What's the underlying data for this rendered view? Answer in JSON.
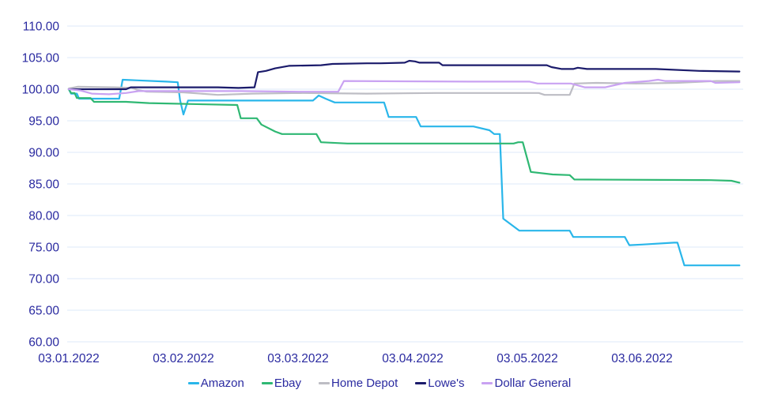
{
  "chart_data": {
    "type": "line",
    "title": "",
    "xlabel": "",
    "ylabel": "",
    "grid": "horizontal",
    "legend_position": "bottom",
    "background": "#ffffff",
    "axis_text_color": "#2a2aa0",
    "gridline_color": "#e3edf9",
    "y_axis": {
      "min": 60,
      "max": 110,
      "step": 5,
      "tick_labels": [
        "110.00",
        "105.00",
        "100.00",
        "95.00",
        "90.00",
        "85.00",
        "80.00",
        "75.00",
        "70.00",
        "65.00",
        "60.00"
      ]
    },
    "x_axis": {
      "tick_labels": [
        "03.01.2022",
        "03.02.2022",
        "03.03.2022",
        "03.04.2022",
        "03.05.2022",
        "03.06.2022"
      ],
      "tick_values": [
        0,
        1,
        2,
        3,
        4,
        5
      ],
      "data_min": 0,
      "data_max": 5.85
    },
    "series": [
      {
        "name": "Amazon",
        "color": "#29b6ea",
        "points": [
          [
            0.0,
            100.0
          ],
          [
            0.02,
            99.3
          ],
          [
            0.07,
            99.3
          ],
          [
            0.09,
            98.5
          ],
          [
            0.44,
            98.5
          ],
          [
            0.47,
            101.5
          ],
          [
            0.6,
            101.4
          ],
          [
            0.85,
            101.2
          ],
          [
            0.95,
            101.1
          ],
          [
            0.97,
            98.3
          ],
          [
            1.0,
            96.0
          ],
          [
            1.04,
            98.2
          ],
          [
            2.13,
            98.2
          ],
          [
            2.18,
            99.0
          ],
          [
            2.24,
            98.5
          ],
          [
            2.32,
            97.9
          ],
          [
            2.75,
            97.9
          ],
          [
            2.79,
            95.6
          ],
          [
            3.03,
            95.6
          ],
          [
            3.07,
            94.1
          ],
          [
            3.53,
            94.1
          ],
          [
            3.67,
            93.5
          ],
          [
            3.71,
            92.9
          ],
          [
            3.76,
            92.9
          ],
          [
            3.79,
            79.5
          ],
          [
            3.93,
            77.6
          ],
          [
            4.37,
            77.6
          ],
          [
            4.4,
            76.6
          ],
          [
            4.85,
            76.6
          ],
          [
            4.89,
            75.3
          ],
          [
            5.0,
            75.4
          ],
          [
            5.28,
            75.7
          ],
          [
            5.31,
            75.7
          ],
          [
            5.37,
            72.1
          ],
          [
            5.85,
            72.1
          ]
        ]
      },
      {
        "name": "Ebay",
        "color": "#2fb873",
        "points": [
          [
            0.0,
            100.0
          ],
          [
            0.02,
            99.4
          ],
          [
            0.05,
            99.4
          ],
          [
            0.07,
            98.6
          ],
          [
            0.19,
            98.6
          ],
          [
            0.22,
            98.0
          ],
          [
            0.5,
            98.0
          ],
          [
            0.7,
            97.8
          ],
          [
            1.2,
            97.6
          ],
          [
            1.47,
            97.5
          ],
          [
            1.5,
            95.4
          ],
          [
            1.64,
            95.4
          ],
          [
            1.68,
            94.4
          ],
          [
            1.8,
            93.3
          ],
          [
            1.86,
            92.9
          ],
          [
            2.16,
            92.9
          ],
          [
            2.2,
            91.6
          ],
          [
            2.43,
            91.4
          ],
          [
            3.88,
            91.4
          ],
          [
            3.92,
            91.6
          ],
          [
            3.96,
            91.6
          ],
          [
            4.03,
            86.9
          ],
          [
            4.22,
            86.5
          ],
          [
            4.37,
            86.4
          ],
          [
            4.41,
            85.7
          ],
          [
            5.6,
            85.6
          ],
          [
            5.78,
            85.5
          ],
          [
            5.85,
            85.2
          ]
        ]
      },
      {
        "name": "Home Depot",
        "color": "#bdbdc4",
        "points": [
          [
            0.0,
            100.1
          ],
          [
            0.08,
            100.4
          ],
          [
            0.4,
            100.3
          ],
          [
            0.55,
            100.2
          ],
          [
            0.6,
            99.9
          ],
          [
            0.68,
            99.6
          ],
          [
            1.0,
            99.5
          ],
          [
            1.3,
            99.1
          ],
          [
            1.6,
            99.3
          ],
          [
            2.0,
            99.4
          ],
          [
            2.6,
            99.3
          ],
          [
            3.2,
            99.4
          ],
          [
            4.1,
            99.4
          ],
          [
            4.15,
            99.1
          ],
          [
            4.37,
            99.1
          ],
          [
            4.41,
            100.9
          ],
          [
            4.6,
            101.0
          ],
          [
            4.95,
            100.9
          ],
          [
            5.3,
            101.0
          ],
          [
            5.65,
            101.3
          ],
          [
            5.85,
            101.3
          ]
        ]
      },
      {
        "name": "Lowe's",
        "color": "#1b1b6b",
        "points": [
          [
            0.0,
            100.0
          ],
          [
            0.5,
            100.0
          ],
          [
            0.54,
            100.3
          ],
          [
            1.3,
            100.3
          ],
          [
            1.48,
            100.2
          ],
          [
            1.62,
            100.3
          ],
          [
            1.65,
            102.7
          ],
          [
            1.72,
            102.9
          ],
          [
            1.8,
            103.3
          ],
          [
            1.92,
            103.7
          ],
          [
            2.2,
            103.8
          ],
          [
            2.3,
            104.0
          ],
          [
            2.6,
            104.1
          ],
          [
            2.72,
            104.1
          ],
          [
            2.93,
            104.2
          ],
          [
            2.97,
            104.5
          ],
          [
            3.02,
            104.4
          ],
          [
            3.06,
            104.2
          ],
          [
            3.23,
            104.2
          ],
          [
            3.26,
            103.8
          ],
          [
            4.17,
            103.8
          ],
          [
            4.21,
            103.5
          ],
          [
            4.3,
            103.2
          ],
          [
            4.4,
            103.2
          ],
          [
            4.44,
            103.4
          ],
          [
            4.52,
            103.2
          ],
          [
            5.12,
            103.2
          ],
          [
            5.5,
            102.9
          ],
          [
            5.85,
            102.8
          ]
        ]
      },
      {
        "name": "Dollar General",
        "color": "#c9a2f2",
        "points": [
          [
            0.0,
            100.0
          ],
          [
            0.1,
            99.8
          ],
          [
            0.2,
            99.3
          ],
          [
            0.35,
            99.2
          ],
          [
            0.5,
            99.4
          ],
          [
            0.61,
            99.7
          ],
          [
            1.5,
            99.7
          ],
          [
            2.0,
            99.6
          ],
          [
            2.35,
            99.6
          ],
          [
            2.4,
            101.3
          ],
          [
            3.5,
            101.2
          ],
          [
            4.02,
            101.2
          ],
          [
            4.09,
            100.9
          ],
          [
            4.38,
            100.9
          ],
          [
            4.5,
            100.3
          ],
          [
            4.68,
            100.3
          ],
          [
            4.85,
            101.0
          ],
          [
            5.06,
            101.3
          ],
          [
            5.14,
            101.5
          ],
          [
            5.2,
            101.3
          ],
          [
            5.6,
            101.3
          ],
          [
            5.64,
            101.0
          ],
          [
            5.85,
            101.1
          ]
        ]
      }
    ]
  }
}
